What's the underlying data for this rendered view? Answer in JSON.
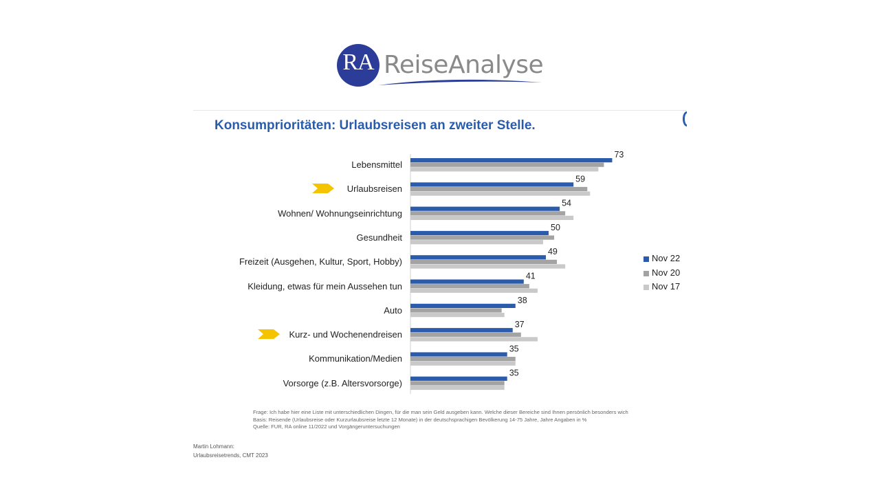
{
  "logo": {
    "initials": "RA",
    "wordmark": "ReiseAnalyse",
    "circle_color": "#2b3d98"
  },
  "slide": {
    "title": "Konsumprioritäten: Urlaubsreisen an zweiter Stelle.",
    "notes": [
      "Frage: Ich habe hier eine Liste mit unterschiedlichen Dingen, für die man sein Geld ausgeben kann. Welche dieser Bereiche sind Ihnen persönlich besonders wich",
      "Basis: Reisende (Urlaubsreise oder Kurzurlaubsreise letzte 12 Monate) in der deutschsprachigen Bevölkerung 14-75 Jahre, Jahre Angaben in %",
      "Quelle: FUR, RA online 11/2022 und Vorgängeruntersuchungen"
    ],
    "author": [
      "Martin Lohmann:",
      "Urlaubsreisetrends, CMT 2023"
    ],
    "highlight_icon": "yellow-chevron-arrow-icon",
    "highlight_color": "#f5c400"
  },
  "chart_data": {
    "type": "bar",
    "orientation": "horizontal",
    "title": "Konsumprioritäten: Urlaubsreisen an zweiter Stelle.",
    "categories": [
      "Lebensmittel",
      "Urlaubsreisen",
      "Wohnen/ Wohnungseinrichtung",
      "Gesundheit",
      "Freizeit (Ausgehen, Kultur, Sport, Hobby)",
      "Kleidung, etwas für mein Aussehen tun",
      "Auto",
      "Kurz- und Wochenendreisen",
      "Kommunikation/Medien",
      "Vorsorge (z.B. Altersvorsorge)"
    ],
    "highlighted": [
      "Urlaubsreisen",
      "Kurz- und Wochenendreisen"
    ],
    "series": [
      {
        "name": "Nov 22",
        "color": "#2b5cab",
        "values": [
          73,
          59,
          54,
          50,
          49,
          41,
          38,
          37,
          35,
          35
        ]
      },
      {
        "name": "Nov 20",
        "color": "#a3a3a3",
        "values": [
          70,
          64,
          56,
          52,
          53,
          43,
          33,
          40,
          38,
          34
        ]
      },
      {
        "name": "Nov 17",
        "color": "#c9c9c9",
        "values": [
          68,
          65,
          59,
          48,
          56,
          46,
          34,
          46,
          38,
          34
        ]
      }
    ],
    "data_labels": [
      "73",
      "59",
      "54",
      "50",
      "49",
      "41",
      "38",
      "37",
      "35",
      "35"
    ],
    "xlim": [
      0,
      100
    ],
    "legend_position": "right",
    "grid": false
  }
}
